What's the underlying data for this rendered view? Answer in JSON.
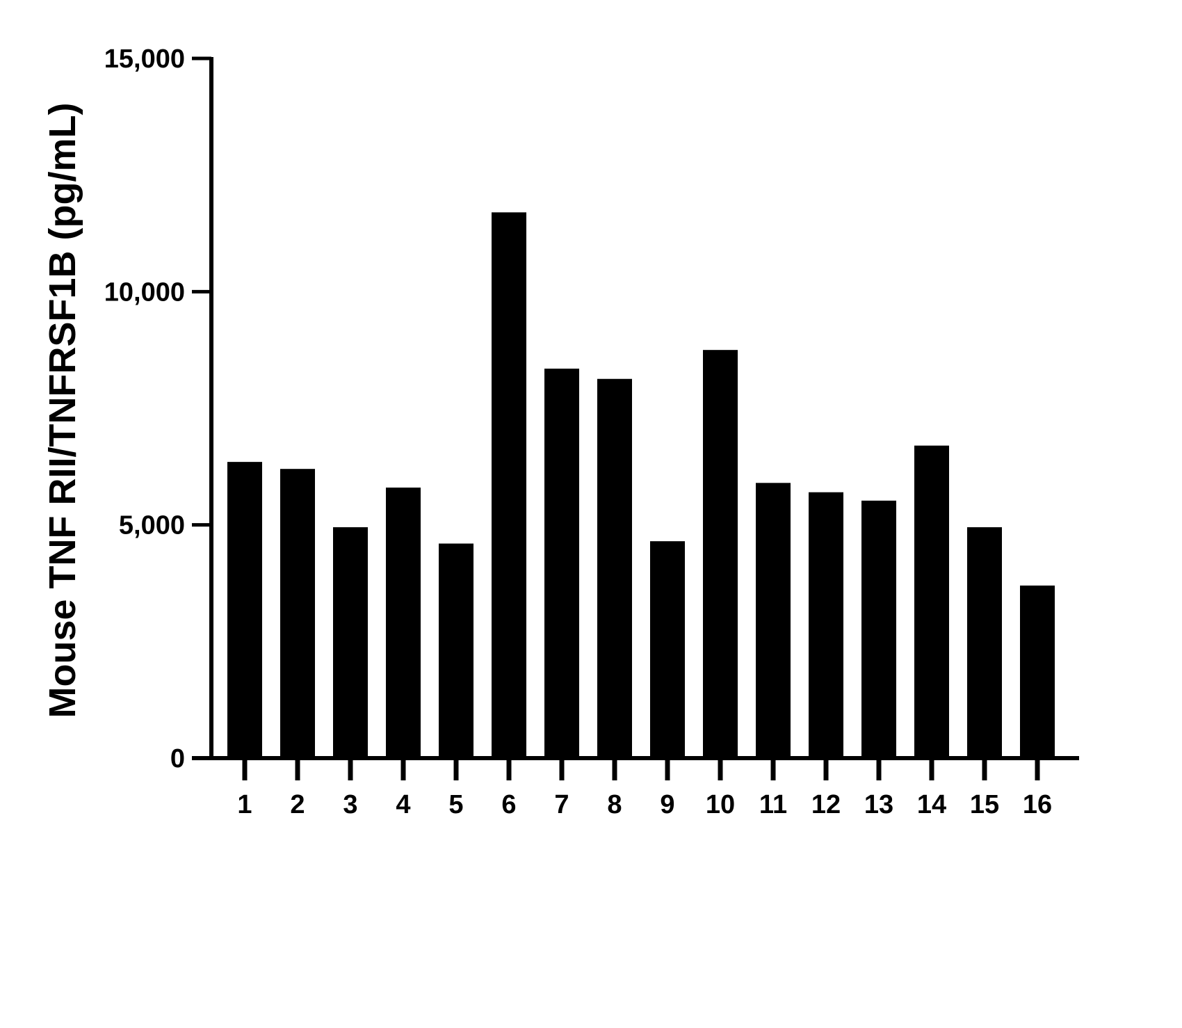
{
  "chart_data": {
    "type": "bar",
    "title": "",
    "xlabel": "",
    "ylabel": "Mouse TNF RII/TNFRSF1B (pg/mL)",
    "categories": [
      "1",
      "2",
      "3",
      "4",
      "5",
      "6",
      "7",
      "8",
      "9",
      "10",
      "11",
      "12",
      "13",
      "14",
      "15",
      "16"
    ],
    "values": [
      6350,
      6200,
      4950,
      5800,
      4600,
      11700,
      8350,
      8130,
      4650,
      8750,
      5900,
      5700,
      5520,
      6700,
      4950,
      3700
    ],
    "ylim": [
      0,
      15000
    ],
    "yticks": [
      {
        "value": 0,
        "label": "0"
      },
      {
        "value": 5000,
        "label": "5,000"
      },
      {
        "value": 10000,
        "label": "10,000"
      },
      {
        "value": 15000,
        "label": "15,000"
      }
    ],
    "grid": false,
    "legend": "none",
    "bar_color": "#000000"
  }
}
